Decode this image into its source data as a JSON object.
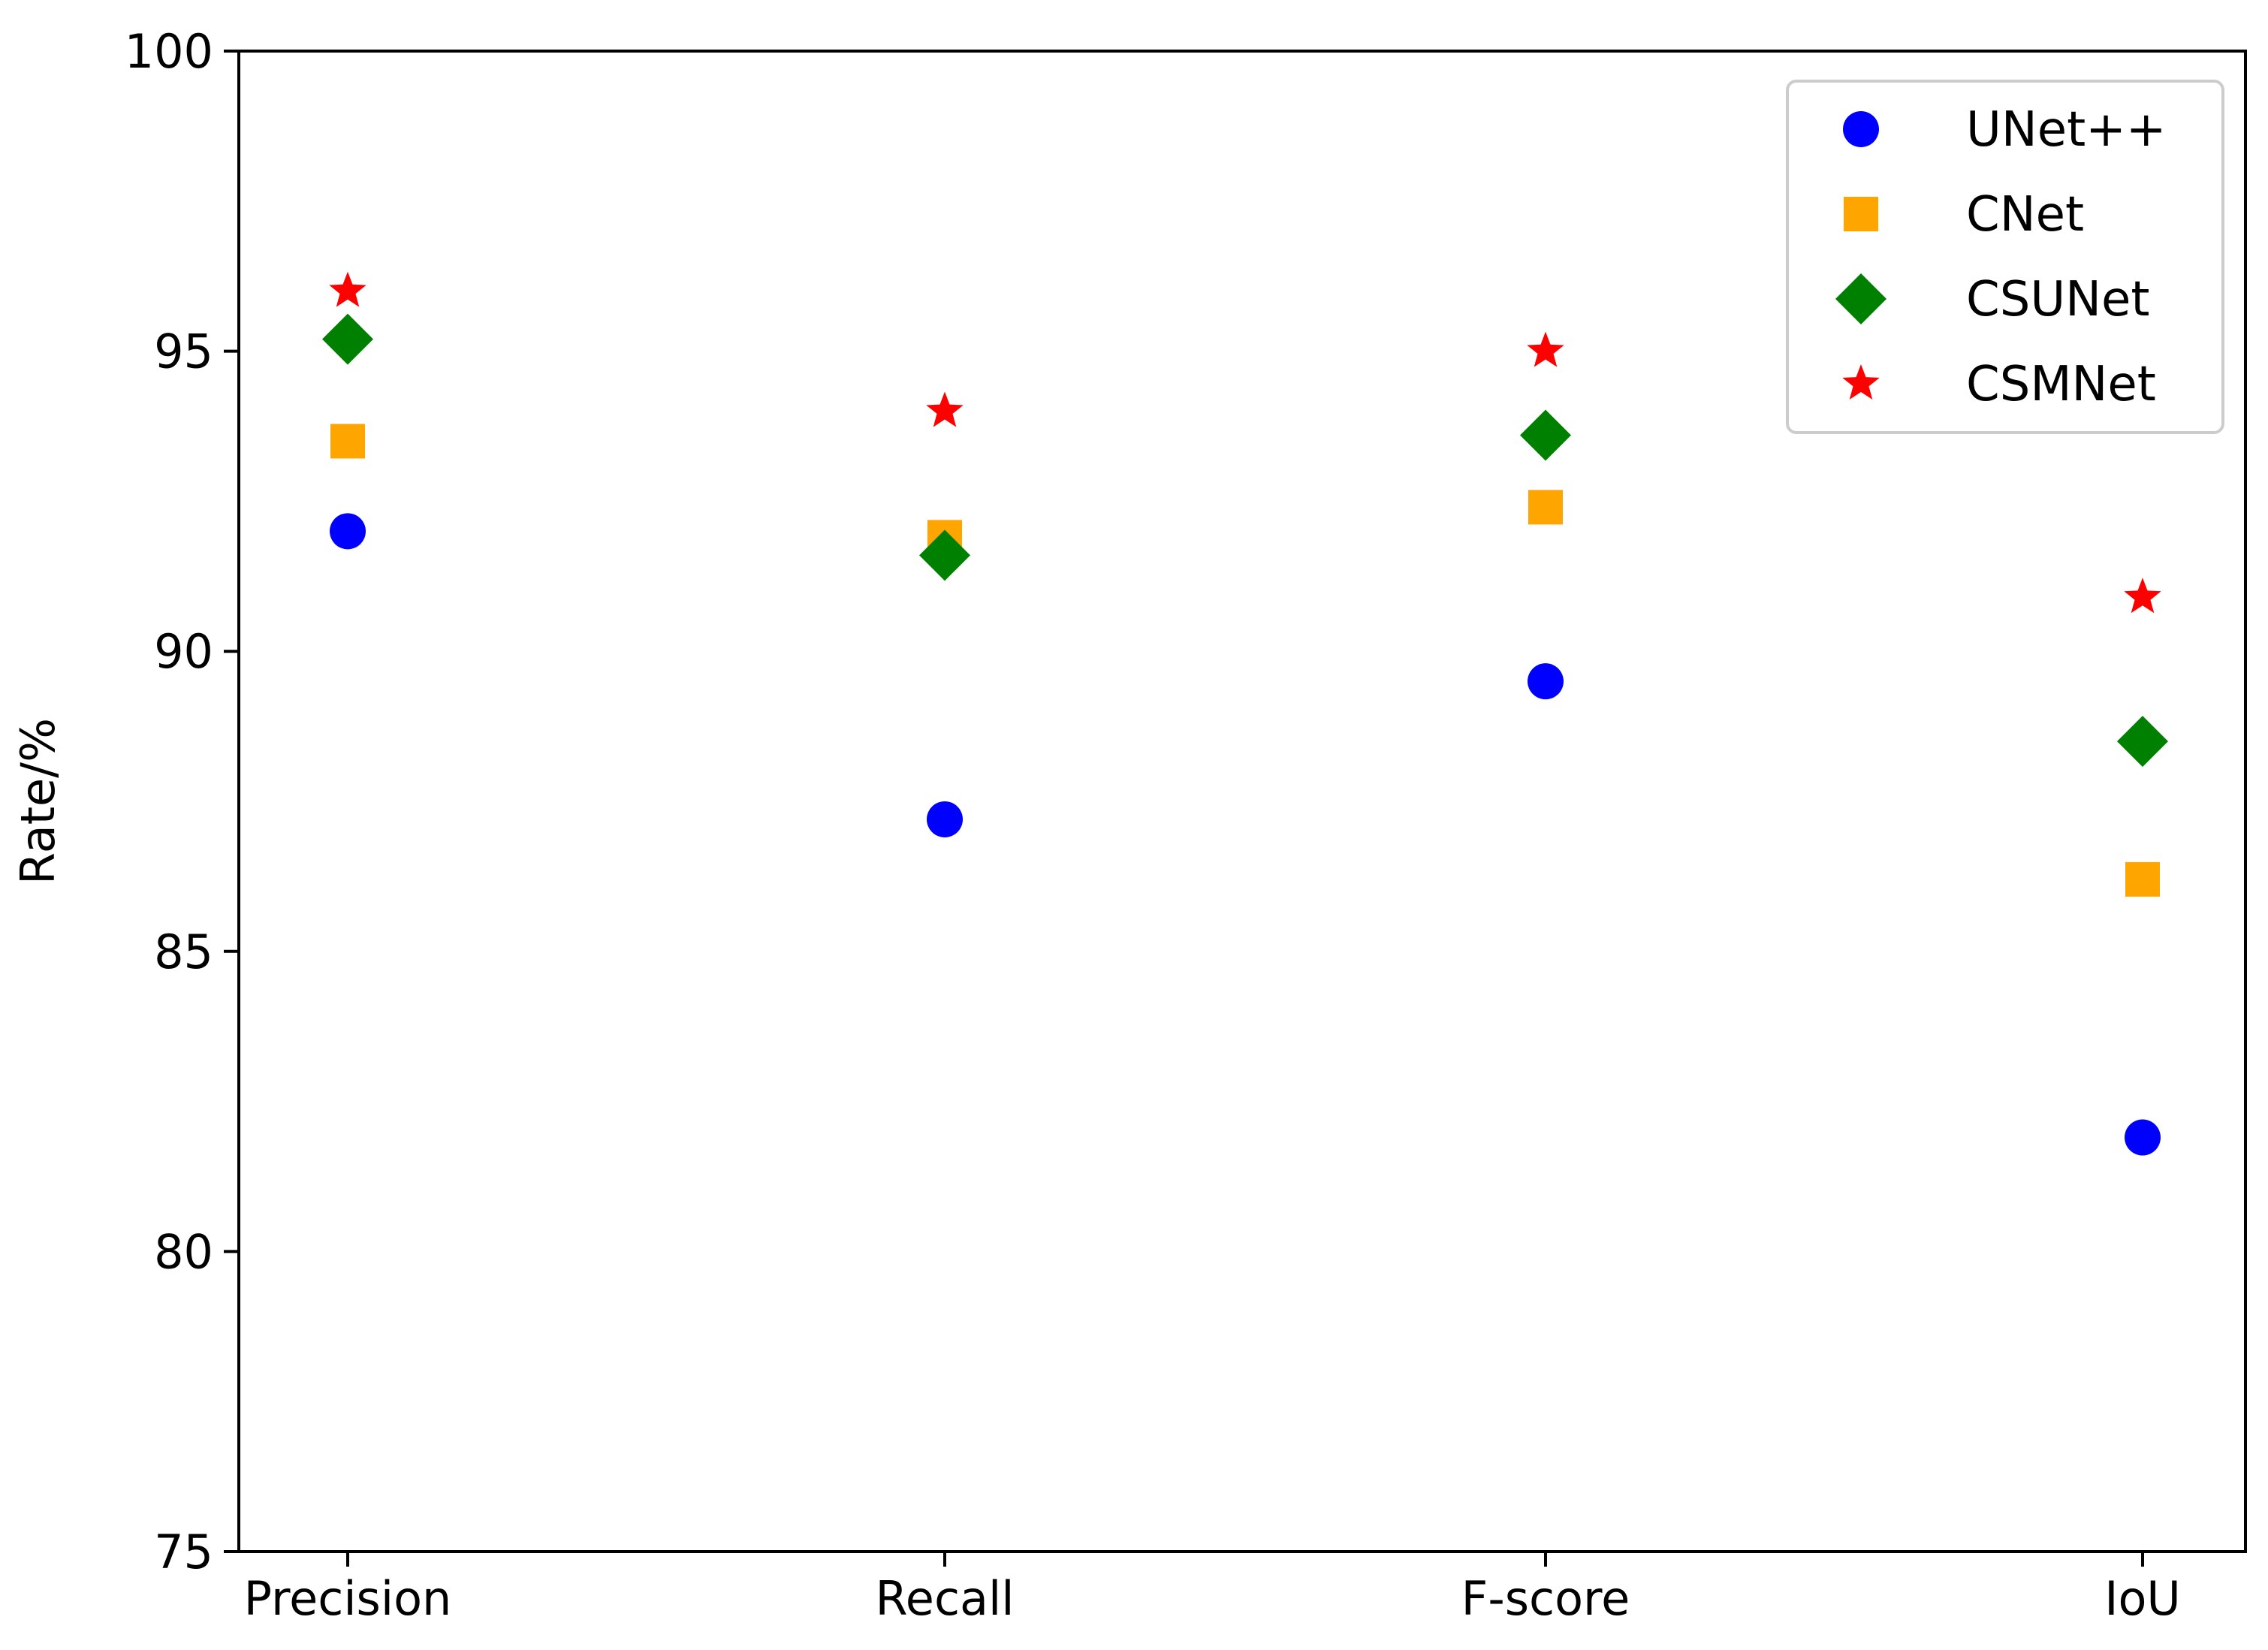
{
  "chart_data": {
    "type": "scatter",
    "categories": [
      "Precision",
      "Recall",
      "F-score",
      "IoU"
    ],
    "ylabel": "Rate/%",
    "ylim": [
      75,
      100
    ],
    "yticks": [
      "75",
      "80",
      "85",
      "90",
      "95",
      "100"
    ],
    "grid": false,
    "legend_position": "top-right",
    "series": [
      {
        "name": "UNet++",
        "marker": "circle",
        "color": "#0000ff",
        "values": [
          92.0,
          87.2,
          89.5,
          81.9
        ]
      },
      {
        "name": "CNet",
        "marker": "square",
        "color": "#ffa500",
        "values": [
          93.5,
          91.9,
          92.4,
          86.2
        ]
      },
      {
        "name": "CSUNet",
        "marker": "diamond",
        "color": "#008000",
        "values": [
          95.2,
          91.6,
          93.6,
          88.5
        ]
      },
      {
        "name": "CSMNet",
        "marker": "star",
        "color": "#ff0000",
        "values": [
          96.0,
          94.0,
          95.0,
          90.9
        ]
      }
    ]
  }
}
